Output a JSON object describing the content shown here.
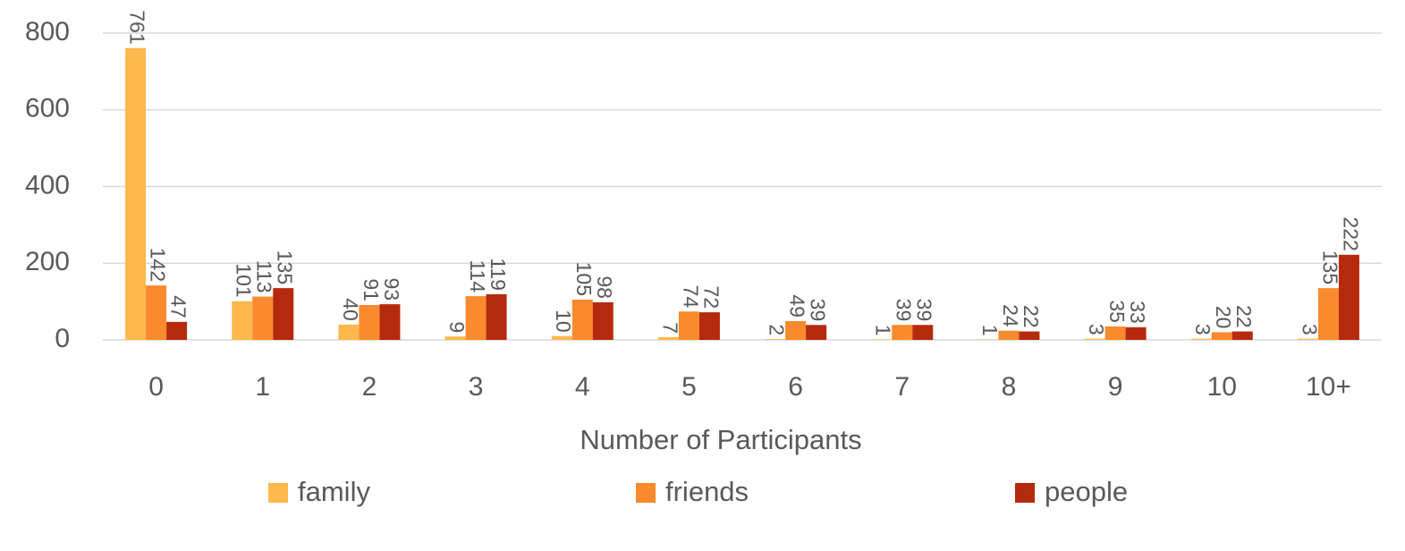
{
  "chart_data": {
    "type": "bar",
    "x_label": "Number of Participants",
    "categories": [
      "0",
      "1",
      "2",
      "3",
      "4",
      "5",
      "6",
      "7",
      "8",
      "9",
      "10",
      "10+"
    ],
    "series": [
      {
        "name": "family",
        "color": "#ffb84d",
        "values": [
          761,
          101,
          40,
          9,
          10,
          7,
          2,
          1,
          1,
          3,
          3,
          3
        ]
      },
      {
        "name": "friends",
        "color": "#f98a2d",
        "values": [
          142,
          113,
          91,
          114,
          105,
          74,
          49,
          39,
          24,
          35,
          20,
          135
        ]
      },
      {
        "name": "people",
        "color": "#b52a0c",
        "values": [
          47,
          135,
          93,
          119,
          98,
          72,
          39,
          39,
          22,
          33,
          22,
          222
        ]
      }
    ],
    "ylim": [
      0,
      800
    ],
    "yticks": [
      0,
      200,
      400,
      600,
      800
    ],
    "grid": true,
    "legend": "bottom"
  }
}
